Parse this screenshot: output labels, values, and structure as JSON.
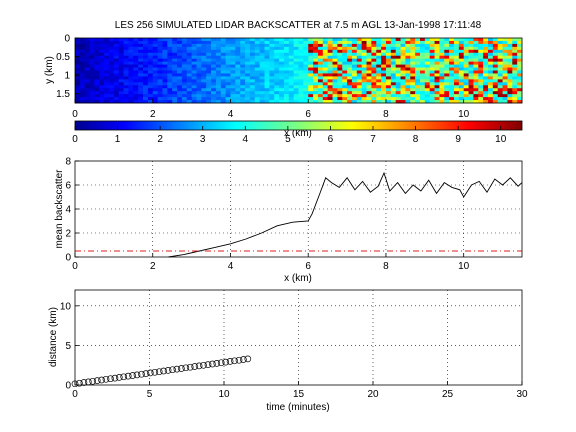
{
  "chart_data": [
    {
      "type": "heatmap",
      "title": "LES 256 SIMULATED LIDAR BACKSCATTER at 7.5 m AGL 13-Jan-1998 17:11:48",
      "xlabel": "x (km)",
      "ylabel": "y (km)",
      "xlim": [
        0,
        11.5
      ],
      "ylim": [
        0,
        1.75
      ],
      "y_direction": "reversed",
      "x_ticks": [
        "0",
        "2",
        "4",
        "6",
        "8",
        "10"
      ],
      "y_ticks": [
        "0",
        "0.5",
        "1",
        "1.5"
      ],
      "regions": [
        {
          "x_range": [
            0,
            6.0
          ],
          "description_values": [
            0.5,
            4.0
          ]
        },
        {
          "x_range": [
            6.0,
            11.5
          ],
          "description_values": [
            3.5,
            10.5
          ]
        }
      ],
      "colorbar": {
        "range": [
          0,
          10.5
        ],
        "ticks": [
          "0",
          "1",
          "2",
          "3",
          "4",
          "5",
          "6",
          "7",
          "8",
          "9",
          "10"
        ],
        "colormap": "jet"
      }
    },
    {
      "type": "line",
      "xlabel": "x (km)",
      "ylabel": "mean backscatter",
      "xlim": [
        0,
        11.5
      ],
      "ylim": [
        0,
        8
      ],
      "grid": true,
      "x_ticks": [
        "0",
        "2",
        "4",
        "6",
        "8",
        "10"
      ],
      "y_ticks": [
        "0",
        "2",
        "4",
        "6",
        "8"
      ],
      "series": [
        {
          "style": "solid",
          "color": "#000000",
          "x": [
            2.4,
            2.8,
            3.2,
            3.6,
            4.0,
            4.4,
            4.8,
            5.2,
            5.6,
            6.0,
            6.1,
            6.3,
            6.45,
            6.6,
            6.8,
            7.0,
            7.2,
            7.4,
            7.6,
            7.8,
            7.95,
            8.1,
            8.3,
            8.5,
            8.7,
            8.9,
            9.1,
            9.3,
            9.5,
            9.7,
            9.9,
            10.0,
            10.2,
            10.4,
            10.6,
            10.8,
            11.0,
            11.2,
            11.4,
            11.5
          ],
          "y": [
            0.0,
            0.2,
            0.5,
            0.8,
            1.1,
            1.5,
            2.0,
            2.6,
            2.9,
            3.0,
            3.6,
            5.3,
            6.6,
            6.2,
            5.8,
            6.6,
            5.6,
            6.3,
            5.4,
            5.9,
            7.0,
            5.5,
            6.2,
            5.3,
            6.0,
            5.5,
            6.4,
            5.3,
            6.2,
            5.8,
            5.6,
            5.0,
            6.0,
            6.3,
            5.4,
            6.5,
            6.0,
            6.6,
            5.9,
            6.2
          ]
        },
        {
          "style": "dash-dot",
          "color": "#e0201d",
          "x": [
            0,
            11.5
          ],
          "y": [
            0.5,
            0.5
          ]
        }
      ]
    },
    {
      "type": "scatter",
      "xlabel": "time (minutes)",
      "ylabel": "distance (km)",
      "xlim": [
        0,
        30
      ],
      "ylim": [
        0,
        12
      ],
      "grid": true,
      "x_ticks": [
        "0",
        "5",
        "10",
        "15",
        "20",
        "25",
        "30"
      ],
      "y_ticks": [
        "0",
        "5",
        "10"
      ],
      "marker": "open-circle",
      "series": [
        {
          "x_start": 0,
          "x_end": 11.6,
          "count": 40,
          "y_start": 0.15,
          "y_end": 3.3
        }
      ]
    }
  ]
}
